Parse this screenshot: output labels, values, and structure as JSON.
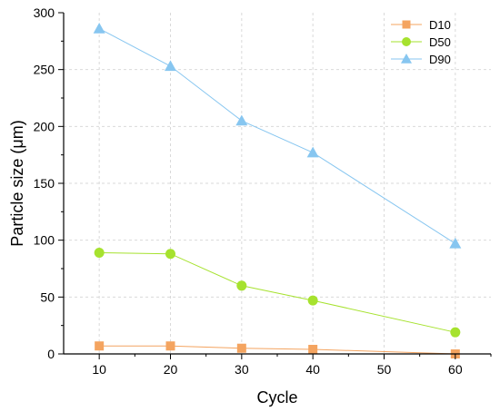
{
  "chart_data": {
    "type": "line",
    "title": "",
    "xlabel": "Cycle",
    "ylabel": "Particle size (μm)",
    "xlim": [
      5,
      65
    ],
    "ylim": [
      0,
      300
    ],
    "xticks": [
      10,
      20,
      30,
      40,
      50,
      60
    ],
    "yticks": [
      0,
      50,
      100,
      150,
      200,
      250,
      300
    ],
    "grid": true,
    "legend": "top-right",
    "series": [
      {
        "name": "D10",
        "color": "#f4a460",
        "marker": "square",
        "x": [
          10,
          20,
          30,
          40,
          60
        ],
        "y": [
          7,
          7,
          5,
          4,
          0
        ]
      },
      {
        "name": "D50",
        "color": "#a6e22e",
        "marker": "circle",
        "x": [
          10,
          20,
          30,
          40,
          60
        ],
        "y": [
          89,
          88,
          60,
          47,
          19
        ]
      },
      {
        "name": "D90",
        "color": "#87c6f0",
        "marker": "triangle",
        "x": [
          10,
          20,
          30,
          40,
          60
        ],
        "y": [
          286,
          253,
          205,
          177,
          97
        ]
      }
    ]
  }
}
